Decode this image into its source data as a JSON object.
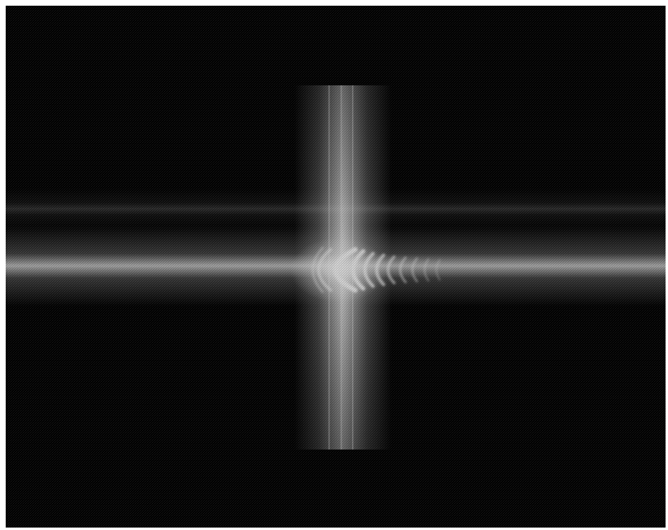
{
  "image": {
    "subject": "",
    "colors": {
      "background": "#000000",
      "frame": "#ffffff",
      "glow": "#ffffff"
    }
  }
}
